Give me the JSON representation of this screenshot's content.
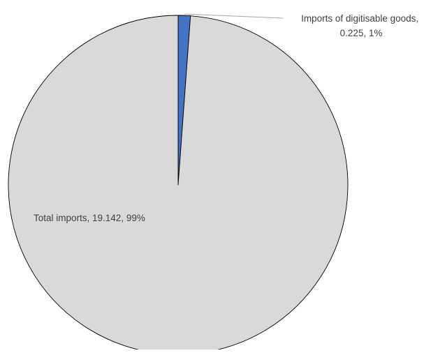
{
  "chart_data": {
    "type": "pie",
    "slices": [
      {
        "name": "Imports of digitisable goods",
        "value": 0.225,
        "percent": "1%",
        "label_line1": "Imports of digitisable goods,",
        "label_line2": "0.225, 1%",
        "color": "#4472C4"
      },
      {
        "name": "Total imports",
        "value": 19.142,
        "percent": "99%",
        "label": "Total imports, 19.142, 99%",
        "color": "#D9D9D9"
      }
    ],
    "start_angle": "12 o'clock",
    "direction": "clockwise",
    "outline_color": "#000000",
    "leader_line_color": "#A6A6A6"
  }
}
